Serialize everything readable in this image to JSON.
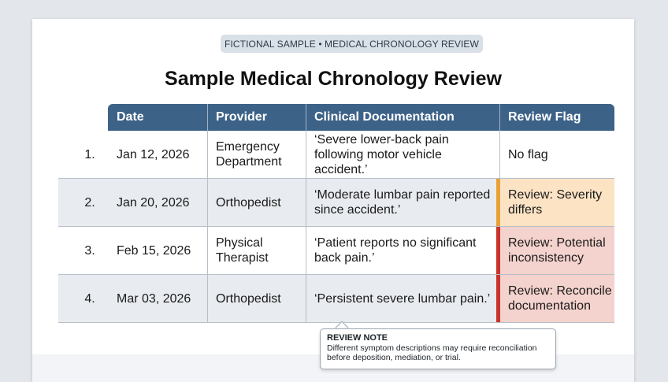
{
  "banner": "FICTIONAL SAMPLE • MEDICAL CHRONOLOGY REVIEW",
  "title": "Sample Medical Chronology Review",
  "table": {
    "headers": [
      "Date",
      "Provider",
      "Clinical Documentation",
      "Review Flag"
    ],
    "rows": [
      {
        "num": "1.",
        "date": "Jan 12, 2026",
        "provider": "Emergency Department",
        "doc": "‘Severe lower-back pain following motor vehicle accident.’",
        "flag": "No flag",
        "flag_level": "none"
      },
      {
        "num": "2.",
        "date": "Jan 20, 2026",
        "provider": "Orthopedist",
        "doc": "‘Moderate lumbar pain reported since accident.’",
        "flag": "Review: Severity differs",
        "flag_level": "amber"
      },
      {
        "num": "3.",
        "date": "Feb 15, 2026",
        "provider": "Physical Therapist",
        "doc": "‘Patient reports no significant back pain.’",
        "flag": "Review: Potential inconsistency",
        "flag_level": "red"
      },
      {
        "num": "4.",
        "date": "Mar 03, 2026",
        "provider": "Orthopedist",
        "doc": "‘Persistent severe lumbar pain.’",
        "flag": "Review: Reconcile documentation",
        "flag_level": "red"
      }
    ]
  },
  "note": {
    "title": "REVIEW NOTE",
    "text": "Different symptom descriptions may require reconciliation before deposition, mediation, or trial."
  },
  "colors": {
    "header": "#3d6288",
    "amber_flag": "#e8a136",
    "red_flag": "#c8332a"
  }
}
